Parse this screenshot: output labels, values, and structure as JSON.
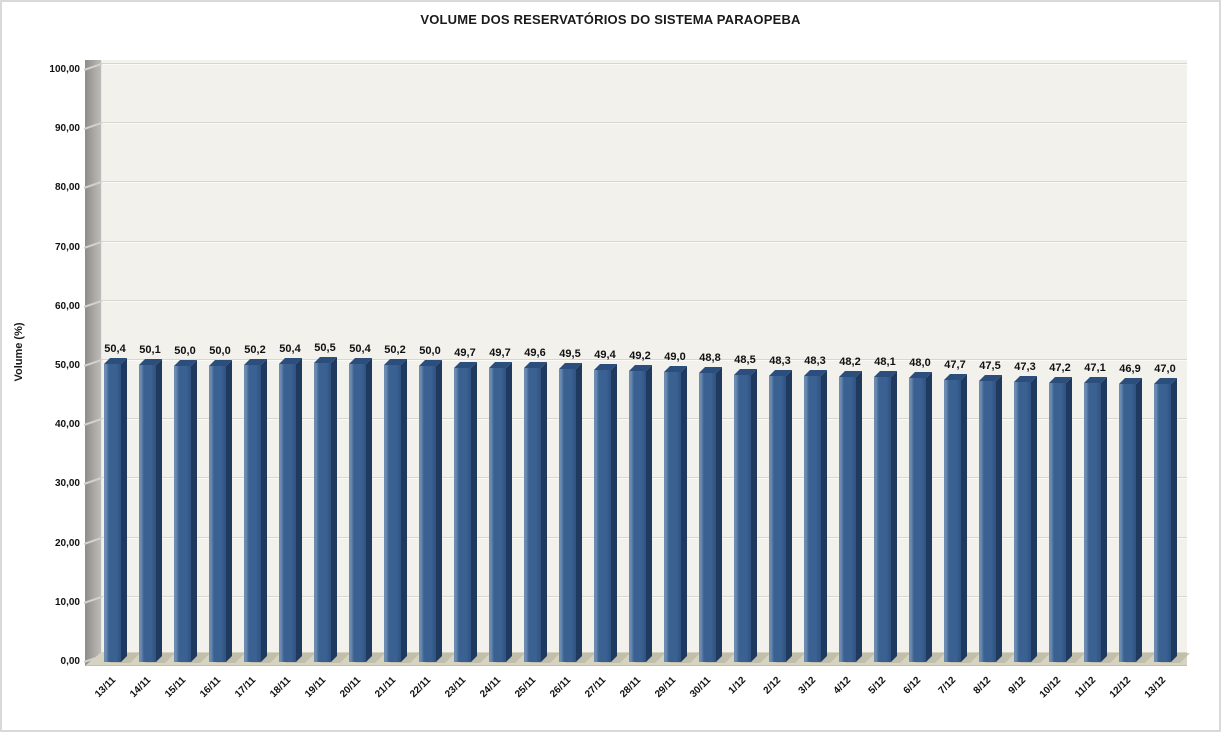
{
  "window": {
    "border_color": "#d9d9d9",
    "background": "#ffffff"
  },
  "chart_data": {
    "type": "bar",
    "style": "3d-column",
    "title": "VOLUME DOS RESERVATÓRIOS DO SISTEMA PARAOPEBA",
    "xlabel": "",
    "ylabel": "Volume (%)",
    "ylim": [
      0,
      100
    ],
    "ytick_step": 10,
    "ytick_labels": [
      "0,00",
      "10,00",
      "20,00",
      "30,00",
      "40,00",
      "50,00",
      "60,00",
      "70,00",
      "80,00",
      "90,00",
      "100,00"
    ],
    "grid": true,
    "legend": "none",
    "categories": [
      "13/11",
      "14/11",
      "15/11",
      "16/11",
      "17/11",
      "18/11",
      "19/11",
      "20/11",
      "21/11",
      "22/11",
      "23/11",
      "24/11",
      "25/11",
      "26/11",
      "27/11",
      "28/11",
      "29/11",
      "30/11",
      "1/12",
      "2/12",
      "3/12",
      "4/12",
      "5/12",
      "6/12",
      "7/12",
      "8/12",
      "9/12",
      "10/12",
      "11/12",
      "12/12",
      "13/12"
    ],
    "values": [
      50.4,
      50.1,
      50.0,
      50.0,
      50.2,
      50.4,
      50.5,
      50.4,
      50.2,
      50.0,
      49.7,
      49.7,
      49.6,
      49.5,
      49.4,
      49.2,
      49.0,
      48.8,
      48.5,
      48.3,
      48.3,
      48.2,
      48.1,
      48.0,
      47.7,
      47.5,
      47.3,
      47.2,
      47.1,
      46.9,
      47.0
    ],
    "value_labels": [
      "50,4",
      "50,1",
      "50,0",
      "50,0",
      "50,2",
      "50,4",
      "50,5",
      "50,4",
      "50,2",
      "50,0",
      "49,7",
      "49,7",
      "49,6",
      "49,5",
      "49,4",
      "49,2",
      "49,0",
      "48,8",
      "48,5",
      "48,3",
      "48,3",
      "48,2",
      "48,1",
      "48,0",
      "47,7",
      "47,5",
      "47,3",
      "47,2",
      "47,1",
      "46,9",
      "47,0"
    ],
    "colors": {
      "bar_front": "#3a6191",
      "bar_front_highlight": "#6b8cb0",
      "bar_front_shade": "#2f5382",
      "bar_side": "#1f3a5e",
      "bar_top": "#2b4e7c",
      "plot_bg": "#f2f1ec",
      "wall": "#a8a7a3",
      "floor": "#d6d3c0",
      "gridline": "#d8d6d0",
      "text": "#111111"
    }
  }
}
